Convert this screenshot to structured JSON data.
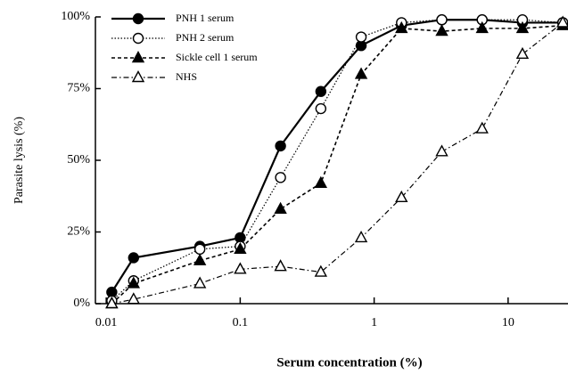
{
  "chart_data": {
    "type": "line",
    "xlabel": "Serum concentration (%)",
    "ylabel": "Parasite lysis (%)",
    "x": [
      0.011,
      0.016,
      0.05,
      0.1,
      0.2,
      0.4,
      0.8,
      1.6,
      3.2,
      6.4,
      12.8,
      25.6
    ],
    "xscale": "log",
    "xlim": [
      0.0083,
      28
    ],
    "xticks": [
      0.01,
      0.1,
      1,
      10
    ],
    "ylim": [
      0,
      100
    ],
    "yticks": [
      {
        "value": 0,
        "label": "0%"
      },
      {
        "value": 25,
        "label": "25%"
      },
      {
        "value": 50,
        "label": "50%"
      },
      {
        "value": 75,
        "label": "75%"
      },
      {
        "value": 100,
        "label": "100%"
      }
    ],
    "legend": "upper left",
    "series": [
      {
        "name": "PNH 1 serum",
        "color": "#000000",
        "marker": "circle-filled",
        "line_style": "solid",
        "values": [
          4,
          16,
          20,
          23,
          55,
          74,
          90,
          97,
          99,
          99,
          98,
          98
        ]
      },
      {
        "name": "PNH 2 serum",
        "color": "#000000",
        "marker": "circle-open",
        "line_style": "dotted",
        "values": [
          1,
          8,
          19,
          20,
          44,
          68,
          93,
          98,
          99,
          99,
          99,
          98
        ]
      },
      {
        "name": "Sickle cell 1 serum",
        "color": "#000000",
        "marker": "triangle-filled",
        "line_style": "dashed",
        "values": [
          0,
          7,
          15,
          19,
          33,
          42,
          80,
          96,
          95,
          96,
          96,
          97
        ]
      },
      {
        "name": "NHS",
        "color": "#000000",
        "marker": "triangle-open",
        "line_style": "dashdot",
        "values": [
          0,
          1.5,
          7,
          12,
          13,
          11,
          23,
          37,
          53,
          61,
          87,
          98
        ]
      }
    ]
  }
}
